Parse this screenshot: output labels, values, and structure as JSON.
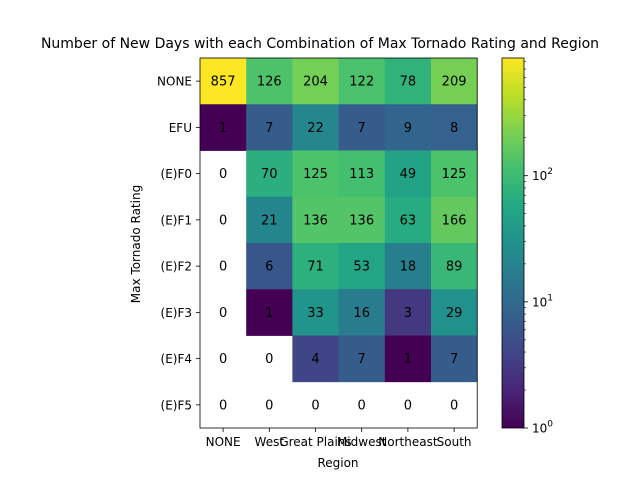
{
  "chart_data": {
    "type": "heatmap",
    "title": "Number of New Days with each Combination of Max Tornado Rating and Region",
    "xlabel": "Region",
    "ylabel": "Max Tornado Rating",
    "x_categories": [
      "NONE",
      "West",
      "Great Plains",
      "Midwest",
      "Northeast",
      "South"
    ],
    "y_categories": [
      "NONE",
      "EFU",
      "(E)F0",
      "(E)F1",
      "(E)F2",
      "(E)F3",
      "(E)F4",
      "(E)F5"
    ],
    "values": [
      [
        857,
        126,
        204,
        122,
        78,
        209
      ],
      [
        1,
        7,
        22,
        7,
        9,
        8
      ],
      [
        0,
        70,
        125,
        113,
        49,
        125
      ],
      [
        0,
        21,
        136,
        136,
        63,
        166
      ],
      [
        0,
        6,
        71,
        53,
        18,
        89
      ],
      [
        0,
        1,
        33,
        16,
        3,
        29
      ],
      [
        0,
        0,
        4,
        7,
        1,
        7
      ],
      [
        0,
        0,
        0,
        0,
        0,
        0
      ]
    ],
    "colorscale": "viridis",
    "color_scale_type": "log",
    "zero_cells": "blank",
    "color_range": [
      1,
      857
    ],
    "colorbar": {
      "ticks": [
        1,
        10,
        100
      ],
      "tick_labels": [
        "10^0",
        "10^1",
        "10^2"
      ]
    },
    "grid": false
  }
}
